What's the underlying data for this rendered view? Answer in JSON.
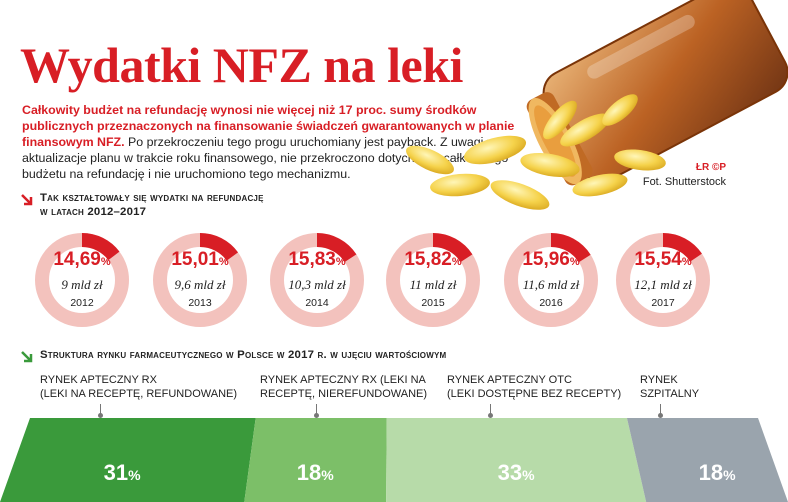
{
  "title": "Wydatki NFZ na leki",
  "lead_bold": "Całkowity budżet na refundację wynosi nie więcej niż 17 proc. sumy środków publicznych przeznaczonych na finansowanie świadczeń gwarantowanych w planie finansowym NFZ.",
  "lead_rest": " Po przekroczeniu tego progu uruchomiany jest payback. Z uwagi na aktualizacje planu w trakcie roku finansowego, nie przekroczono dotychczas całkowitego budżetu na refundację i nie uruchomiono tego mechanizmu.",
  "copyright": "ŁR ©P",
  "photo_credit": "Fot. Shutterstock",
  "section1": {
    "line1": "Tak kształtowały się wydatki na refundację",
    "line2": "w latach 2012–2017"
  },
  "section2": {
    "title": "Struktura rynku farmaceutycznego w Polsce w 2017 r. w ujęciu wartościowym"
  },
  "colors": {
    "accent": "#d81e25",
    "ring_bg": "#f3c2bd",
    "green_dark": "#3a9a3b",
    "green_mid": "#7cbf68",
    "green_light": "#b7dba9",
    "gray": "#9aa4ad"
  },
  "chart_data": [
    {
      "type": "pie",
      "title": "Tak kształtowały się wydatki na refundację w latach 2012–2017",
      "categories": [
        "2012",
        "2013",
        "2014",
        "2015",
        "2016",
        "2017"
      ],
      "items": [
        {
          "year": "2012",
          "percent": 14.69,
          "pct_label": "14,69",
          "amount": "9 mld zł"
        },
        {
          "year": "2013",
          "percent": 15.01,
          "pct_label": "15,01",
          "amount": "9,6 mld zł"
        },
        {
          "year": "2014",
          "percent": 15.83,
          "pct_label": "15,83",
          "amount": "10,3 mld zł"
        },
        {
          "year": "2015",
          "percent": 15.82,
          "pct_label": "15,82",
          "amount": "11 mld zł"
        },
        {
          "year": "2016",
          "percent": 15.96,
          "pct_label": "15,96",
          "amount": "11,6 mld zł"
        },
        {
          "year": "2017",
          "percent": 15.54,
          "pct_label": "15,54",
          "amount": "12,1 mld zł"
        }
      ]
    },
    {
      "type": "bar",
      "title": "Struktura rynku farmaceutycznego w Polsce w 2017 r. w ujęciu wartościowym",
      "segments": [
        {
          "label_line1": "RYNEK APTECZNY RX",
          "label_line2": "(LEKI NA RECEPTĘ, REFUNDOWANE)",
          "value": 31,
          "value_label": "31"
        },
        {
          "label_line1": "RYNEK APTECZNY RX (LEKI NA",
          "label_line2": "RECEPTĘ, NIEREFUNDOWANE)",
          "value": 18,
          "value_label": "18"
        },
        {
          "label_line1": "RYNEK APTECZNY OTC",
          "label_line2": "(LEKI DOSTĘPNE BEZ RECEPTY)",
          "value": 33,
          "value_label": "33"
        },
        {
          "label_line1": "RYNEK",
          "label_line2": "SZPITALNY",
          "value": 18,
          "value_label": "18"
        }
      ],
      "unit": "%"
    }
  ]
}
